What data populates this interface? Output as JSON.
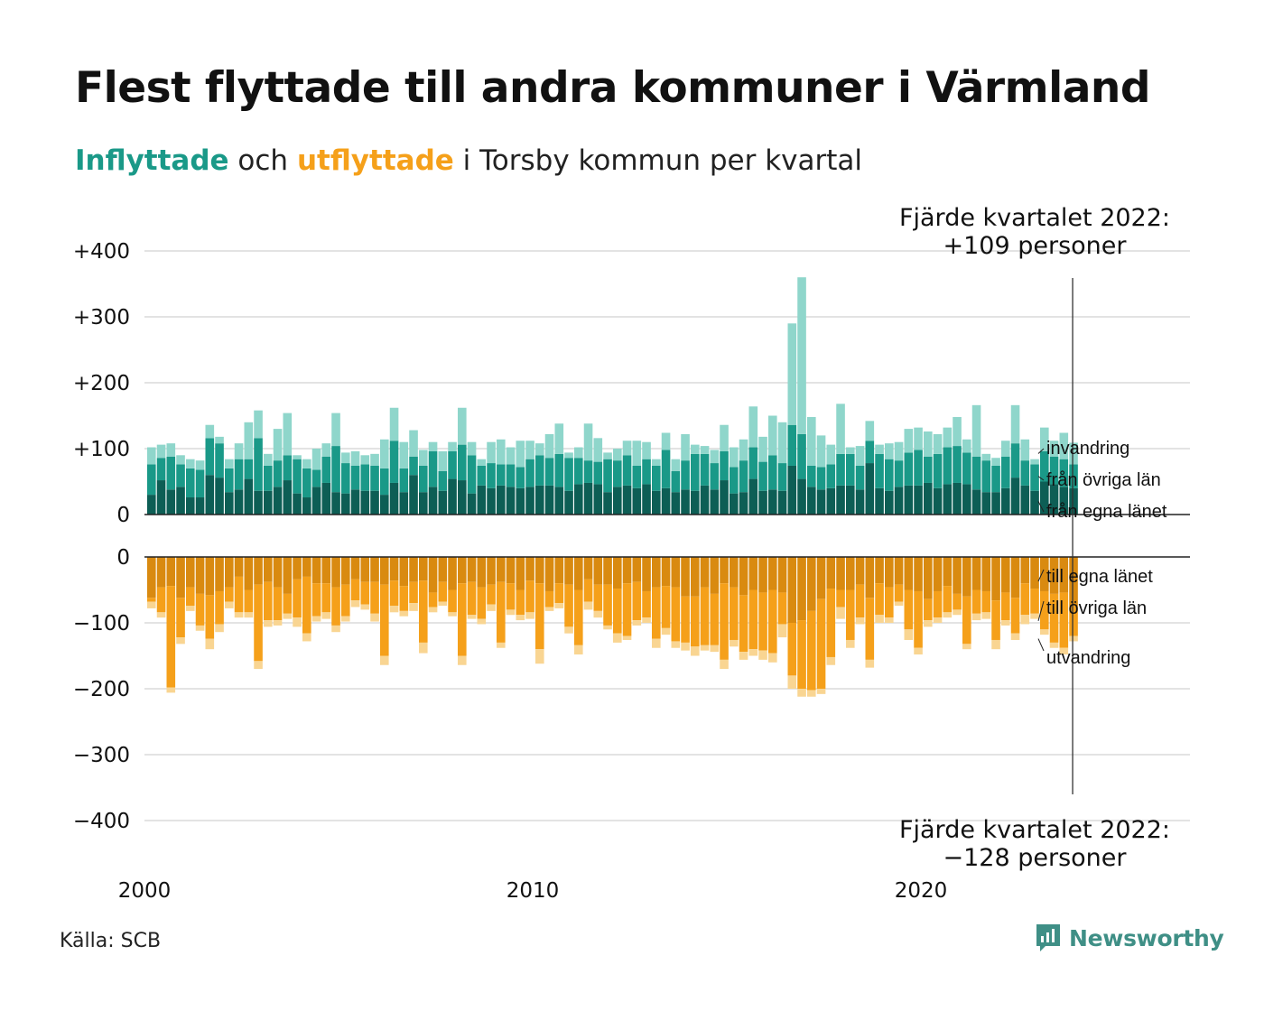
{
  "title": "Flest flyttade till andra kommuner i Värmland",
  "subtitle": {
    "in_word": "Inflyttade",
    "and_word": " och ",
    "out_word": "utflyttade",
    "rest": " i Torsby kommun per kvartal"
  },
  "source": "Källa: SCB",
  "logo": {
    "name": "Newsworthy",
    "icon": "newsworthy-chart-icon"
  },
  "colors": {
    "in_own": "#0d5e55",
    "in_other": "#1a9988",
    "in_abroad": "#8fd6cb",
    "out_own": "#d98a10",
    "out_other": "#f5a01a",
    "out_abroad": "#f9d592",
    "grid": "#e3e3e3",
    "axis": "#222222"
  },
  "chart_data": {
    "type": "bar",
    "x_start": 2000,
    "quarters_per_year": 4,
    "ylim": [
      -400,
      400
    ],
    "y_ticks": [
      {
        "value": 400,
        "label": "+400"
      },
      {
        "value": 300,
        "label": "+300"
      },
      {
        "value": 200,
        "label": "+200"
      },
      {
        "value": 100,
        "label": "+100"
      },
      {
        "value": 0,
        "label": "0"
      }
    ],
    "y_ticks_neg": [
      {
        "value": 0,
        "label": "0"
      },
      {
        "value": -100,
        "label": "−100"
      },
      {
        "value": -200,
        "label": "−200"
      },
      {
        "value": -300,
        "label": "−300"
      },
      {
        "value": -400,
        "label": "−400"
      }
    ],
    "x_ticks": [
      {
        "value": 2000,
        "label": "2000"
      },
      {
        "value": 2010,
        "label": "2010"
      },
      {
        "value": 2020,
        "label": "2020"
      }
    ],
    "in_series_labels": [
      "från egna länet",
      "från övriga län",
      "invandring"
    ],
    "out_series_labels": [
      "till egna länet",
      "till övriga län",
      "utvandring"
    ],
    "annotation_top": {
      "line1": "Fjärde kvartalet 2022:",
      "line2": "+109 personer"
    },
    "annotation_bottom": {
      "line1": "Fjärde kvartalet 2022:",
      "line2": "−128 personer"
    },
    "inflow": {
      "own_county": [
        30,
        52,
        38,
        42,
        26,
        26,
        60,
        56,
        34,
        38,
        54,
        36,
        36,
        42,
        52,
        32,
        26,
        42,
        48,
        34,
        32,
        38,
        36,
        36,
        30,
        48,
        34,
        60,
        34,
        42,
        36,
        54,
        52,
        32,
        44,
        40,
        44,
        42,
        40,
        42,
        44,
        44,
        42,
        36,
        46,
        48,
        46,
        34,
        42,
        44,
        40,
        46,
        36,
        40,
        34,
        38,
        36,
        44,
        38,
        52,
        32,
        34,
        54,
        36,
        38,
        36,
        74,
        54,
        42,
        38,
        40,
        44,
        44,
        38,
        78,
        40,
        36,
        42,
        44,
        44,
        48,
        40,
        46,
        48,
        46,
        38,
        34,
        34,
        40,
        56,
        44,
        36,
        50,
        46,
        42,
        40
      ],
      "other_counties": [
        46,
        34,
        50,
        34,
        44,
        42,
        56,
        52,
        36,
        46,
        30,
        80,
        38,
        40,
        38,
        52,
        44,
        26,
        40,
        70,
        46,
        36,
        40,
        38,
        40,
        64,
        36,
        28,
        40,
        54,
        30,
        42,
        54,
        58,
        30,
        38,
        32,
        34,
        32,
        42,
        46,
        42,
        50,
        50,
        40,
        34,
        34,
        50,
        40,
        46,
        34,
        38,
        38,
        58,
        32,
        44,
        56,
        48,
        40,
        44,
        40,
        48,
        48,
        44,
        52,
        42,
        62,
        68,
        32,
        34,
        36,
        48,
        48,
        36,
        34,
        52,
        48,
        40,
        50,
        54,
        40,
        52,
        56,
        56,
        48,
        50,
        48,
        40,
        48,
        52,
        38,
        40,
        46,
        42,
        42,
        36
      ],
      "abroad": [
        26,
        20,
        20,
        14,
        14,
        14,
        20,
        10,
        14,
        24,
        56,
        42,
        18,
        48,
        64,
        6,
        14,
        32,
        20,
        50,
        16,
        22,
        14,
        18,
        44,
        50,
        40,
        40,
        24,
        14,
        30,
        14,
        56,
        20,
        10,
        32,
        38,
        26,
        40,
        28,
        18,
        36,
        46,
        8,
        16,
        56,
        36,
        10,
        18,
        22,
        38,
        26,
        10,
        26,
        18,
        40,
        14,
        12,
        20,
        40,
        30,
        32,
        62,
        38,
        60,
        62,
        154,
        238,
        74,
        48,
        30,
        76,
        10,
        30,
        30,
        14,
        24,
        28,
        36,
        34,
        38,
        30,
        30,
        44,
        20,
        78,
        10,
        12,
        24,
        58,
        32,
        8,
        36,
        24,
        40,
        33
      ]
    },
    "outflow": {
      "own_county": [
        -62,
        -46,
        -44,
        -62,
        -46,
        -56,
        -58,
        -52,
        -46,
        -30,
        -50,
        -42,
        -38,
        -46,
        -56,
        -34,
        -30,
        -40,
        -40,
        -46,
        -42,
        -34,
        -38,
        -38,
        -42,
        -36,
        -44,
        -38,
        -36,
        -54,
        -38,
        -50,
        -40,
        -38,
        -46,
        -42,
        -38,
        -40,
        -50,
        -36,
        -40,
        -52,
        -40,
        -42,
        -50,
        -34,
        -42,
        -42,
        -48,
        -40,
        -38,
        -52,
        -46,
        -44,
        -46,
        -60,
        -60,
        -46,
        -56,
        -40,
        -46,
        -58,
        -50,
        -54,
        -50,
        -54,
        -100,
        -96,
        -82,
        -64,
        -48,
        -50,
        -50,
        -42,
        -62,
        -40,
        -46,
        -42,
        -50,
        -52,
        -64,
        -52,
        -44,
        -56,
        -60,
        -50,
        -52,
        -66,
        -54,
        -62,
        -40,
        -48,
        -52,
        -56,
        -54,
        -74
      ],
      "other_counties": [
        -6,
        -38,
        -154,
        -60,
        -28,
        -48,
        -66,
        -50,
        -22,
        -54,
        -34,
        -116,
        -58,
        -50,
        -30,
        -58,
        -86,
        -50,
        -44,
        -58,
        -48,
        -32,
        -34,
        -48,
        -108,
        -38,
        -38,
        -32,
        -94,
        -22,
        -30,
        -34,
        -110,
        -50,
        -48,
        -30,
        -92,
        -40,
        -38,
        -48,
        -100,
        -24,
        -30,
        -64,
        -84,
        -34,
        -40,
        -62,
        -68,
        -80,
        -58,
        -40,
        -78,
        -64,
        -82,
        -70,
        -76,
        -88,
        -78,
        -116,
        -80,
        -86,
        -90,
        -88,
        -96,
        -48,
        -80,
        -104,
        -120,
        -136,
        -104,
        -26,
        -76,
        -50,
        -94,
        -48,
        -46,
        -26,
        -60,
        -86,
        -32,
        -40,
        -40,
        -24,
        -72,
        -36,
        -32,
        -60,
        -42,
        -54,
        -48,
        -38,
        -58,
        -74,
        -84,
        -46
      ],
      "abroad": [
        -10,
        -8,
        -8,
        -10,
        -8,
        -8,
        -16,
        -12,
        -10,
        -8,
        -8,
        -12,
        -10,
        -8,
        -8,
        -14,
        -12,
        -8,
        -10,
        -10,
        -8,
        -10,
        -8,
        -12,
        -14,
        -10,
        -8,
        -12,
        -16,
        -8,
        -6,
        -6,
        -14,
        -6,
        -8,
        -10,
        -8,
        -8,
        -8,
        -10,
        -22,
        -6,
        -8,
        -10,
        -14,
        -12,
        -10,
        -6,
        -14,
        -6,
        -8,
        -8,
        -14,
        -10,
        -10,
        -12,
        -14,
        -8,
        -10,
        -14,
        -10,
        -12,
        -10,
        -14,
        -14,
        -20,
        -20,
        -12,
        -10,
        -8,
        -12,
        -18,
        -12,
        -10,
        -12,
        -12,
        -8,
        -6,
        -16,
        -10,
        -10,
        -8,
        -8,
        -8,
        -8,
        -10,
        -10,
        -14,
        -8,
        -10,
        -14,
        -8,
        -8,
        -8,
        -10,
        -8
      ]
    }
  }
}
